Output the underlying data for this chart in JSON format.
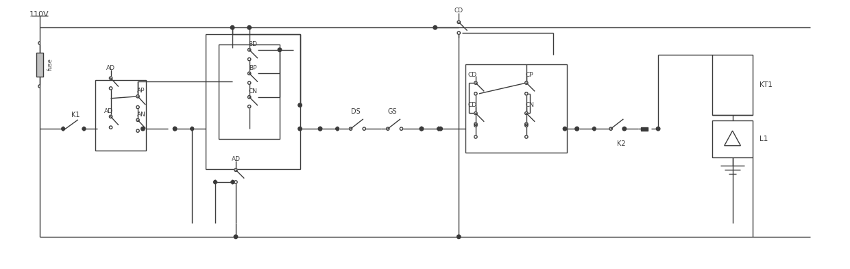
{
  "bg_color": "#ffffff",
  "line_color": "#3a3a3a",
  "line_width": 1.0,
  "fig_width": 12.4,
  "fig_height": 3.93,
  "labels": {
    "voltage": "110V",
    "fuse": "fuse",
    "K1": "K1",
    "AD_above": "AD",
    "AD_box1": "AD",
    "AP": "AP",
    "AN": "AN",
    "BD": "BD",
    "BP": "BP",
    "CN_box2": "CN",
    "AD_bottom": "AD",
    "DS": "DS",
    "GS": "GS",
    "CD_top": "CD",
    "CD_upper": "CD",
    "CD_lower": "CD",
    "CP": "CP",
    "CN_box3": "CN",
    "K2": "K2",
    "KT1": "KT1",
    "L1": "L1"
  }
}
